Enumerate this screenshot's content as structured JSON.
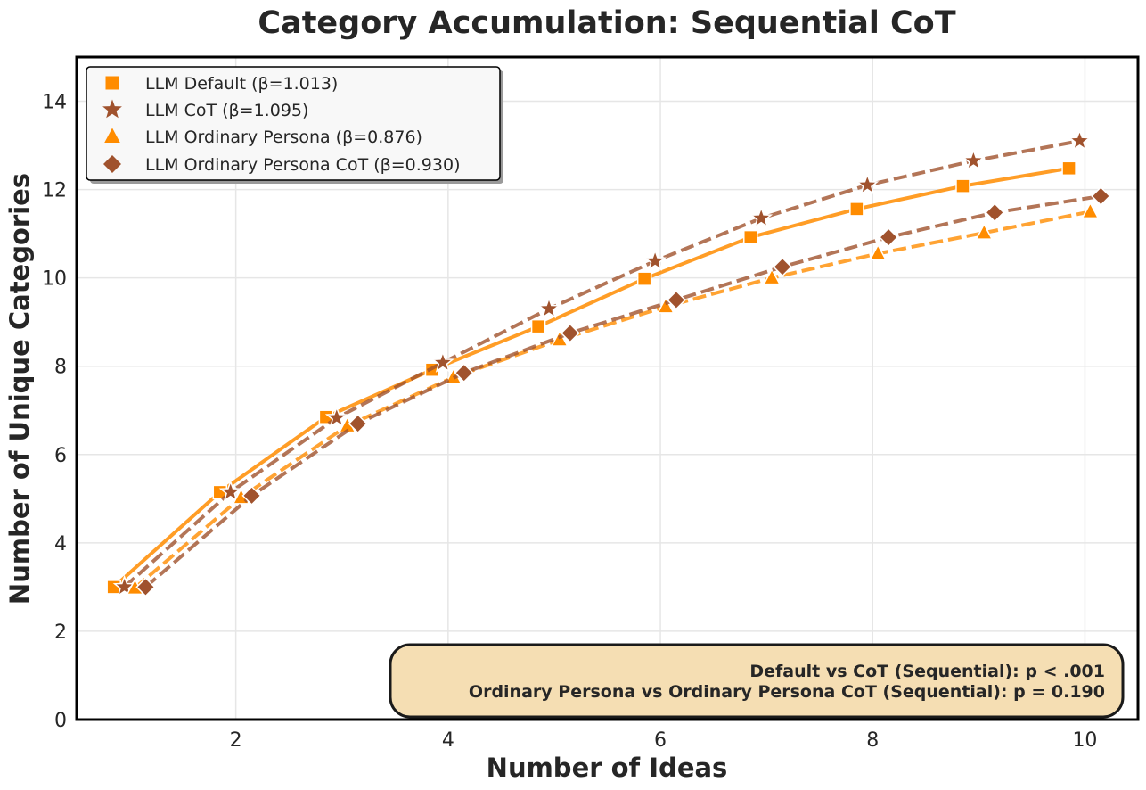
{
  "chart_data": {
    "type": "line",
    "title": "Category Accumulation: Sequential CoT",
    "xlabel": "Number of Ideas",
    "ylabel": "Number of Unique Categories",
    "xlim": [
      0.5,
      10.5
    ],
    "ylim": [
      0,
      15
    ],
    "xticks": [
      2,
      4,
      6,
      8,
      10
    ],
    "yticks": [
      0,
      2,
      4,
      6,
      8,
      10,
      12,
      14
    ],
    "grid": true,
    "legend_position": "top-left",
    "series": [
      {
        "name": "LLM Default (β=1.013)",
        "color": "#ff8c00",
        "marker": "square",
        "linestyle": "solid",
        "x": [
          0.85,
          1.85,
          2.85,
          3.85,
          4.85,
          5.85,
          6.85,
          7.85,
          8.85,
          9.85
        ],
        "y": [
          3.0,
          5.15,
          6.85,
          7.92,
          8.9,
          9.98,
          10.92,
          11.56,
          12.08,
          12.48
        ]
      },
      {
        "name": "LLM CoT (β=1.095)",
        "color": "#a0522d",
        "marker": "star",
        "linestyle": "dashed",
        "x": [
          0.95,
          1.95,
          2.95,
          3.95,
          4.95,
          5.95,
          6.95,
          7.95,
          8.95,
          9.95
        ],
        "y": [
          3.0,
          5.15,
          6.83,
          8.08,
          9.3,
          10.38,
          11.35,
          12.1,
          12.65,
          13.1
        ]
      },
      {
        "name": "LLM Ordinary Persona (β=0.876)",
        "color": "#ff8c00",
        "marker": "triangle",
        "linestyle": "dashed",
        "x": [
          1.05,
          2.05,
          3.05,
          4.05,
          5.05,
          6.05,
          7.05,
          8.05,
          9.05,
          10.05
        ],
        "y": [
          2.98,
          5.03,
          6.65,
          7.75,
          8.6,
          9.35,
          10.0,
          10.55,
          11.02,
          11.5
        ]
      },
      {
        "name": "LLM Ordinary Persona CoT (β=0.930)",
        "color": "#a0522d",
        "marker": "diamond",
        "linestyle": "dashed",
        "x": [
          1.15,
          2.15,
          3.15,
          4.15,
          5.15,
          6.15,
          7.15,
          8.15,
          9.15,
          10.15
        ],
        "y": [
          3.0,
          5.07,
          6.7,
          7.85,
          8.75,
          9.5,
          10.25,
          10.92,
          11.48,
          11.85
        ]
      }
    ],
    "annotations": [
      "Default vs CoT (Sequential): p < .001",
      "Ordinary Persona vs Ordinary Persona CoT (Sequential): p = 0.190"
    ]
  },
  "colors": {
    "annotation_box": "#f5deb3",
    "grid": "#e6e6e6"
  }
}
